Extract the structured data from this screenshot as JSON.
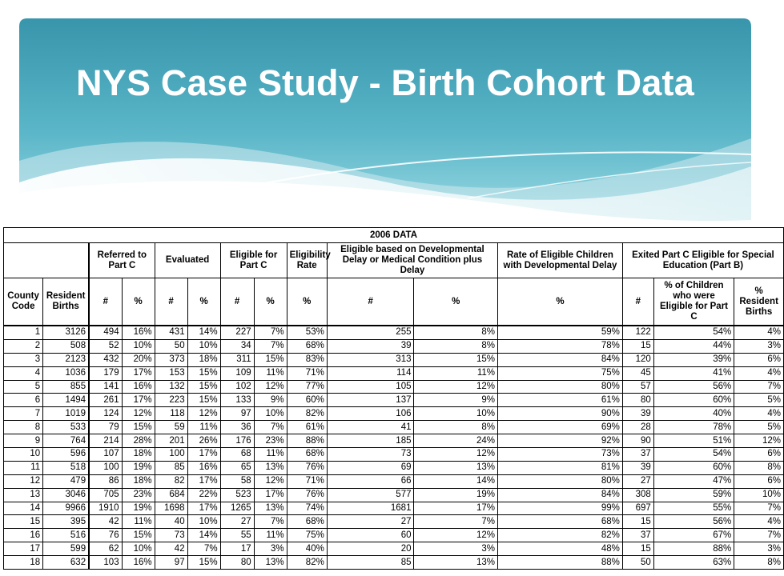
{
  "title": "NYS Case Study - Birth Cohort Data",
  "colors": {
    "banner_top": "#3a9fb3",
    "banner_bottom": "#8fd3df",
    "title": "#ffffff"
  },
  "table": {
    "top_header": "2006 DATA",
    "groups": {
      "referred": "Referred to Part C",
      "evaluated": "Evaluated",
      "eligible": "Eligible for Part C",
      "eligibility_rate": "Eligibility Rate",
      "eligible_dd": "Eligible based on Developmental Delay or Medical Condition plus Delay",
      "rate_dd": "Rate of Eligible Children with Developmental Delay",
      "exited": "Exited Part C Eligible for Special Education (Part B)"
    },
    "columns": [
      "County Code",
      "Resident Births",
      "#",
      "%",
      "#",
      "%",
      "#",
      "%",
      "%",
      "#",
      "%",
      "%",
      "#",
      "% of Children who were Eligible for Part C",
      "% Resident Births"
    ],
    "rows": [
      [
        "1",
        "3126",
        "494",
        "16%",
        "431",
        "14%",
        "227",
        "7%",
        "53%",
        "255",
        "8%",
        "59%",
        "122",
        "54%",
        "4%"
      ],
      [
        "2",
        "508",
        "52",
        "10%",
        "50",
        "10%",
        "34",
        "7%",
        "68%",
        "39",
        "8%",
        "78%",
        "15",
        "44%",
        "3%"
      ],
      [
        "3",
        "2123",
        "432",
        "20%",
        "373",
        "18%",
        "311",
        "15%",
        "83%",
        "313",
        "15%",
        "84%",
        "120",
        "39%",
        "6%"
      ],
      [
        "4",
        "1036",
        "179",
        "17%",
        "153",
        "15%",
        "109",
        "11%",
        "71%",
        "114",
        "11%",
        "75%",
        "45",
        "41%",
        "4%"
      ],
      [
        "5",
        "855",
        "141",
        "16%",
        "132",
        "15%",
        "102",
        "12%",
        "77%",
        "105",
        "12%",
        "80%",
        "57",
        "56%",
        "7%"
      ],
      [
        "6",
        "1494",
        "261",
        "17%",
        "223",
        "15%",
        "133",
        "9%",
        "60%",
        "137",
        "9%",
        "61%",
        "80",
        "60%",
        "5%"
      ],
      [
        "7",
        "1019",
        "124",
        "12%",
        "118",
        "12%",
        "97",
        "10%",
        "82%",
        "106",
        "10%",
        "90%",
        "39",
        "40%",
        "4%"
      ],
      [
        "8",
        "533",
        "79",
        "15%",
        "59",
        "11%",
        "36",
        "7%",
        "61%",
        "41",
        "8%",
        "69%",
        "28",
        "78%",
        "5%"
      ],
      [
        "9",
        "764",
        "214",
        "28%",
        "201",
        "26%",
        "176",
        "23%",
        "88%",
        "185",
        "24%",
        "92%",
        "90",
        "51%",
        "12%"
      ],
      [
        "10",
        "596",
        "107",
        "18%",
        "100",
        "17%",
        "68",
        "11%",
        "68%",
        "73",
        "12%",
        "73%",
        "37",
        "54%",
        "6%"
      ],
      [
        "11",
        "518",
        "100",
        "19%",
        "85",
        "16%",
        "65",
        "13%",
        "76%",
        "69",
        "13%",
        "81%",
        "39",
        "60%",
        "8%"
      ],
      [
        "12",
        "479",
        "86",
        "18%",
        "82",
        "17%",
        "58",
        "12%",
        "71%",
        "66",
        "14%",
        "80%",
        "27",
        "47%",
        "6%"
      ],
      [
        "13",
        "3046",
        "705",
        "23%",
        "684",
        "22%",
        "523",
        "17%",
        "76%",
        "577",
        "19%",
        "84%",
        "308",
        "59%",
        "10%"
      ],
      [
        "14",
        "9966",
        "1910",
        "19%",
        "1698",
        "17%",
        "1265",
        "13%",
        "74%",
        "1681",
        "17%",
        "99%",
        "697",
        "55%",
        "7%"
      ],
      [
        "15",
        "395",
        "42",
        "11%",
        "40",
        "10%",
        "27",
        "7%",
        "68%",
        "27",
        "7%",
        "68%",
        "15",
        "56%",
        "4%"
      ],
      [
        "16",
        "516",
        "76",
        "15%",
        "73",
        "14%",
        "55",
        "11%",
        "75%",
        "60",
        "12%",
        "82%",
        "37",
        "67%",
        "7%"
      ],
      [
        "17",
        "599",
        "62",
        "10%",
        "42",
        "7%",
        "17",
        "3%",
        "40%",
        "20",
        "3%",
        "48%",
        "15",
        "88%",
        "3%"
      ],
      [
        "18",
        "632",
        "103",
        "16%",
        "97",
        "15%",
        "80",
        "13%",
        "82%",
        "85",
        "13%",
        "88%",
        "50",
        "63%",
        "8%"
      ]
    ]
  }
}
